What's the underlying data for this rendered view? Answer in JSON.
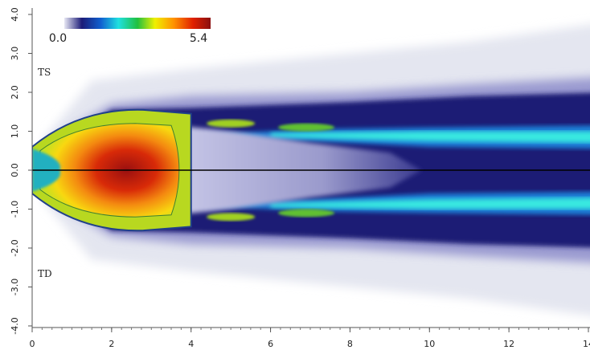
{
  "chart_data": {
    "type": "heatmap",
    "colorbar": {
      "clim": [
        0,
        5.4
      ],
      "ticks": [
        {
          "value": 0,
          "label": "0.0"
        },
        {
          "value": 5.4,
          "label": "5.4"
        }
      ]
    },
    "annotations": [
      "TS",
      "TD"
    ],
    "xlim": [
      0,
      14
    ],
    "xticks": [
      0,
      2,
      4,
      6,
      8,
      10,
      12,
      14
    ],
    "ylim": [
      -4,
      4
    ],
    "yticks": [
      {
        "value": -4,
        "label": "-4.0"
      },
      {
        "value": -3,
        "label": "-3.0"
      },
      {
        "value": -2,
        "label": "-2.0"
      },
      {
        "value": -1,
        "label": "-1.0"
      },
      {
        "value": 0,
        "label": "0.0"
      },
      {
        "value": 1,
        "label": "1.0"
      },
      {
        "value": 2,
        "label": "2.0"
      },
      {
        "value": 3,
        "label": "3.0"
      },
      {
        "value": 4,
        "label": "4.0"
      }
    ]
  }
}
